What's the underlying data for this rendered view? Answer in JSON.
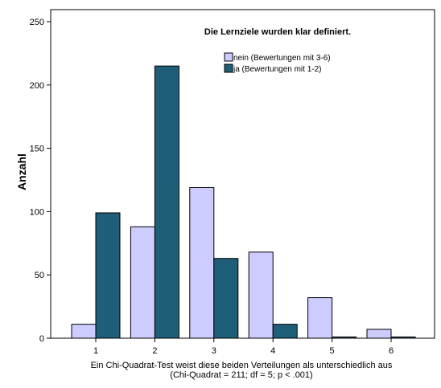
{
  "chart_data": {
    "type": "bar",
    "title": "Die Lernziele wurden klar definiert.",
    "ylabel": "Anzahl",
    "xlabel": "",
    "categories": [
      "1",
      "2",
      "3",
      "4",
      "5",
      "6"
    ],
    "ylim": [
      0,
      250
    ],
    "yticks": [
      0,
      50,
      100,
      150,
      200,
      250
    ],
    "series": [
      {
        "name": "nein (Bewertungen mit 3-6)",
        "color": "#ccccff",
        "values": [
          11,
          88,
          119,
          68,
          32,
          7
        ]
      },
      {
        "name": "ja (Bewertungen mit 1-2)",
        "color": "#1f5e78",
        "values": [
          99,
          215,
          63,
          11,
          1,
          1
        ]
      }
    ],
    "legend_position": "top-right",
    "grid": false,
    "footnote_line1": "Ein Chi-Quadrat-Test weist diese beiden Verteilungen als unterschiedlich aus",
    "footnote_line2": "(Chi-Quadrat = 211; df = 5; p < .001)"
  }
}
